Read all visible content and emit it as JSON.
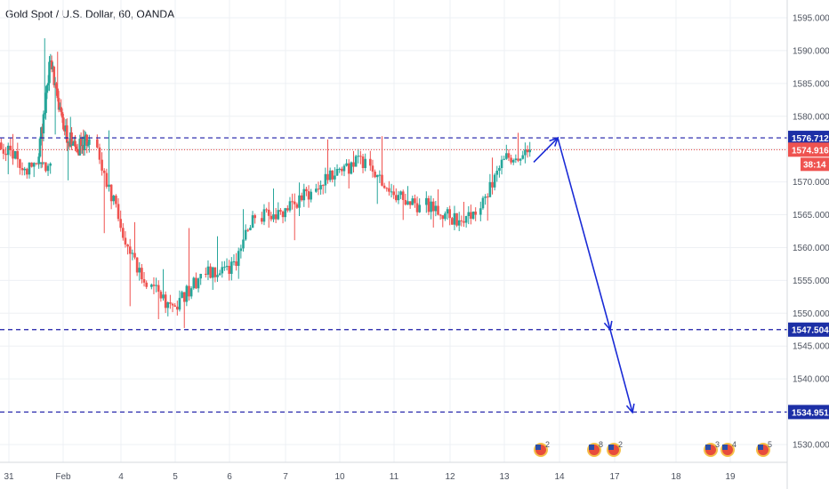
{
  "header": {
    "title": "Gold Spot / U.S. Dollar, 60, OANDA"
  },
  "colors": {
    "up": "#26a69a",
    "down": "#ef5350",
    "level_line": "#1a1aa6",
    "last_price_line": "#e53935",
    "arrow": "#1a2bd6",
    "grid": "#eef0f4",
    "axis_text": "#4c525e",
    "tag_level": "#1c2fa6",
    "tag_last": "#ef5350"
  },
  "chart_data": {
    "type": "candlestick",
    "symbol": "Gold Spot / U.S. Dollar",
    "interval": "60",
    "source": "OANDA",
    "ylim": [
      1526,
      1598
    ],
    "y_ticks": [
      "1595.000",
      "1590.000",
      "1585.000",
      "1580.000",
      "1575.000",
      "1570.000",
      "1565.000",
      "1560.000",
      "1555.000",
      "1550.000",
      "1545.000",
      "1540.000",
      "1535.000",
      "1530.000"
    ],
    "x_ticks": [
      "31",
      "Feb",
      "4",
      "5",
      "6",
      "7",
      "10",
      "11",
      "12",
      "13",
      "14",
      "17",
      "18",
      "19"
    ],
    "candles": [
      {
        "d": "31",
        "o": 1576.0,
        "h": 1577.5,
        "l": 1571.0,
        "c": 1572.0
      },
      {
        "d": "31",
        "o": 1572.0,
        "h": 1573.0,
        "l": 1570.5,
        "c": 1572.8
      },
      {
        "d": "Feb",
        "o": 1572.8,
        "h": 1592.0,
        "l": 1572.0,
        "c": 1588.5
      },
      {
        "d": "Feb",
        "o": 1588.5,
        "h": 1590.0,
        "l": 1577.0,
        "c": 1578.0
      },
      {
        "d": "Feb",
        "o": 1578.0,
        "h": 1580.0,
        "l": 1570.0,
        "c": 1575.0
      },
      {
        "d": "Feb",
        "o": 1575.0,
        "h": 1578.0,
        "l": 1574.0,
        "c": 1576.5
      },
      {
        "d": "4",
        "o": 1576.5,
        "h": 1578.0,
        "l": 1562.0,
        "c": 1563.0
      },
      {
        "d": "4",
        "o": 1563.0,
        "h": 1564.0,
        "l": 1551.0,
        "c": 1554.0
      },
      {
        "d": "5",
        "o": 1554.0,
        "h": 1557.0,
        "l": 1549.0,
        "c": 1551.0
      },
      {
        "d": "5",
        "o": 1551.0,
        "h": 1563.0,
        "l": 1547.5,
        "c": 1556.0
      },
      {
        "d": "6",
        "o": 1556.0,
        "h": 1562.0,
        "l": 1553.5,
        "c": 1556.0
      },
      {
        "d": "6",
        "o": 1556.0,
        "h": 1566.0,
        "l": 1555.0,
        "c": 1564.5
      },
      {
        "d": "7",
        "o": 1564.5,
        "h": 1569.0,
        "l": 1563.0,
        "c": 1566.0
      },
      {
        "d": "7",
        "o": 1566.0,
        "h": 1570.0,
        "l": 1561.0,
        "c": 1568.5
      },
      {
        "d": "10",
        "o": 1568.5,
        "h": 1576.5,
        "l": 1568.0,
        "c": 1572.0
      },
      {
        "d": "10",
        "o": 1572.0,
        "h": 1575.0,
        "l": 1569.0,
        "c": 1573.5
      },
      {
        "d": "11",
        "o": 1573.5,
        "h": 1577.0,
        "l": 1566.5,
        "c": 1568.0
      },
      {
        "d": "11",
        "o": 1568.0,
        "h": 1569.5,
        "l": 1564.0,
        "c": 1566.5
      },
      {
        "d": "12",
        "o": 1566.5,
        "h": 1569.0,
        "l": 1563.0,
        "c": 1564.5
      },
      {
        "d": "12",
        "o": 1564.5,
        "h": 1567.0,
        "l": 1562.5,
        "c": 1565.0
      },
      {
        "d": "13",
        "o": 1565.0,
        "h": 1574.0,
        "l": 1564.0,
        "c": 1573.5
      },
      {
        "d": "13",
        "o": 1573.5,
        "h": 1577.5,
        "l": 1572.5,
        "c": 1574.9
      }
    ],
    "levels": [
      {
        "name": "resistance",
        "value": 1576.712,
        "label": "1576.712"
      },
      {
        "name": "support-1",
        "value": 1547.504,
        "label": "1547.504"
      },
      {
        "name": "support-2",
        "value": 1534.951,
        "label": "1534.951"
      }
    ],
    "last_price": {
      "value": 1574.916,
      "label": "1574.916",
      "countdown": "38:14"
    },
    "projection": [
      {
        "x": "13",
        "y": 1573.0
      },
      {
        "x": "14",
        "y": 1576.7
      },
      {
        "x": "17",
        "y": 1547.5
      },
      {
        "x": "17",
        "y": 1534.9
      }
    ],
    "events": [
      {
        "x": "14",
        "count": "2"
      },
      {
        "x": "17",
        "count": "8"
      },
      {
        "x": "17",
        "count": "2"
      },
      {
        "x": "18",
        "count": "3"
      },
      {
        "x": "19",
        "count": "4"
      },
      {
        "x": "19",
        "count": "5"
      }
    ]
  }
}
